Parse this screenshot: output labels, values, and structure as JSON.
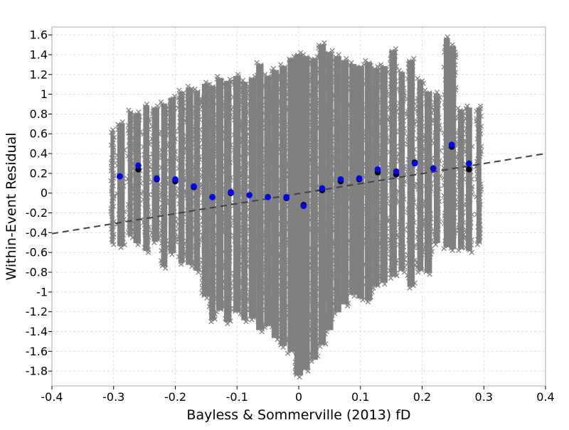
{
  "chart_data": {
    "type": "scatter",
    "title": "",
    "xlabel": "Bayless & Sommerville (2013) fD",
    "ylabel": "Within-Event Residual",
    "xlim": [
      -0.4,
      0.4
    ],
    "ylim": [
      -1.95,
      1.68
    ],
    "xticks": [
      -0.4,
      -0.3,
      -0.2,
      -0.1,
      0,
      0.1,
      0.2,
      0.3,
      0.4
    ],
    "xtick_labels": [
      "-0.4",
      "-0.3",
      "-0.2",
      "-0.1",
      "0",
      "0.1",
      "0.2",
      "0.3",
      "0.4"
    ],
    "yticks": [
      1.6,
      1.4,
      1.2,
      1,
      0.8,
      0.6,
      0.4,
      0.2,
      0,
      -0.2,
      -0.4,
      -0.6,
      -0.8,
      -1,
      -1.2,
      -1.4,
      -1.6,
      -1.8
    ],
    "ytick_labels": [
      "1.6",
      "1.4",
      "1.2",
      "1",
      "0.8",
      "0.6",
      "0.4",
      "0.2",
      "0",
      "-0.2",
      "-0.4",
      "-0.6",
      "-0.8",
      "-1",
      "-1.2",
      "-1.4",
      "-1.6",
      "-1.8"
    ],
    "grid": true,
    "legend": "none",
    "colors": {
      "residuals": "#808080",
      "bin_mean_black": "#000000",
      "bin_mean_blue": "#0000ff",
      "trend_line": "#404040",
      "grid": "#dddddd",
      "frame": "#aaaaaa"
    },
    "series": [
      {
        "marker": "x",
        "color": "#808080",
        "columns": [
          {
            "x": -0.302,
            "ymin": -0.52,
            "ymax": 0.64,
            "w": 0.006
          },
          {
            "x": -0.288,
            "ymin": -0.55,
            "ymax": 0.72,
            "w": 0.012
          },
          {
            "x": -0.273,
            "ymin": -0.45,
            "ymax": 0.84,
            "w": 0.008
          },
          {
            "x": -0.262,
            "ymin": -0.52,
            "ymax": 0.82,
            "w": 0.012
          },
          {
            "x": -0.247,
            "ymin": -0.6,
            "ymax": 0.9,
            "w": 0.01
          },
          {
            "x": -0.232,
            "ymin": -0.5,
            "ymax": 0.88,
            "w": 0.012
          },
          {
            "x": -0.218,
            "ymin": -0.76,
            "ymax": 0.92,
            "w": 0.01
          },
          {
            "x": -0.205,
            "ymin": -0.62,
            "ymax": 0.98,
            "w": 0.012
          },
          {
            "x": -0.19,
            "ymin": -0.72,
            "ymax": 1.04,
            "w": 0.01
          },
          {
            "x": -0.177,
            "ymin": -0.74,
            "ymax": 1.08,
            "w": 0.012
          },
          {
            "x": -0.165,
            "ymin": -0.8,
            "ymax": 1.05,
            "w": 0.01
          },
          {
            "x": -0.151,
            "ymin": -1.06,
            "ymax": 1.12,
            "w": 0.012
          },
          {
            "x": -0.14,
            "ymin": -1.3,
            "ymax": 1.1,
            "w": 0.01
          },
          {
            "x": -0.128,
            "ymin": -1.2,
            "ymax": 1.18,
            "w": 0.012
          },
          {
            "x": -0.115,
            "ymin": -1.32,
            "ymax": 1.15,
            "w": 0.012
          },
          {
            "x": -0.1,
            "ymin": -1.22,
            "ymax": 1.2,
            "w": 0.012
          },
          {
            "x": -0.088,
            "ymin": -1.3,
            "ymax": 1.14,
            "w": 0.01
          },
          {
            "x": -0.075,
            "ymin": -1.28,
            "ymax": 1.18,
            "w": 0.012
          },
          {
            "x": -0.063,
            "ymin": -1.4,
            "ymax": 1.32,
            "w": 0.012
          },
          {
            "x": -0.05,
            "ymin": -1.36,
            "ymax": 1.2,
            "w": 0.012
          },
          {
            "x": -0.038,
            "ymin": -1.48,
            "ymax": 1.26,
            "w": 0.012
          },
          {
            "x": -0.025,
            "ymin": -1.56,
            "ymax": 1.3,
            "w": 0.012
          },
          {
            "x": -0.012,
            "ymin": -1.62,
            "ymax": 1.38,
            "w": 0.012
          },
          {
            "x": 0.0,
            "ymin": -1.86,
            "ymax": 1.42,
            "w": 0.014
          },
          {
            "x": 0.012,
            "ymin": -1.8,
            "ymax": 1.4,
            "w": 0.012
          },
          {
            "x": 0.025,
            "ymin": -1.7,
            "ymax": 1.38,
            "w": 0.012
          },
          {
            "x": 0.038,
            "ymin": -1.55,
            "ymax": 1.52,
            "w": 0.012
          },
          {
            "x": 0.05,
            "ymin": -1.4,
            "ymax": 1.44,
            "w": 0.012
          },
          {
            "x": 0.063,
            "ymin": -1.22,
            "ymax": 1.4,
            "w": 0.012
          },
          {
            "x": 0.075,
            "ymin": -1.14,
            "ymax": 1.36,
            "w": 0.012
          },
          {
            "x": 0.088,
            "ymin": -1.04,
            "ymax": 1.32,
            "w": 0.012
          },
          {
            "x": 0.1,
            "ymin": -1.08,
            "ymax": 1.3,
            "w": 0.012
          },
          {
            "x": 0.113,
            "ymin": -1.1,
            "ymax": 1.34,
            "w": 0.012
          },
          {
            "x": 0.125,
            "ymin": -0.96,
            "ymax": 1.28,
            "w": 0.012
          },
          {
            "x": 0.138,
            "ymin": -0.92,
            "ymax": 1.3,
            "w": 0.012
          },
          {
            "x": 0.153,
            "ymin": -0.86,
            "ymax": 1.46,
            "w": 0.012
          },
          {
            "x": 0.167,
            "ymin": -0.8,
            "ymax": 1.24,
            "w": 0.01
          },
          {
            "x": 0.182,
            "ymin": -0.96,
            "ymax": 1.36,
            "w": 0.012
          },
          {
            "x": 0.197,
            "ymin": -0.8,
            "ymax": 1.16,
            "w": 0.01
          },
          {
            "x": 0.21,
            "ymin": -0.82,
            "ymax": 1.04,
            "w": 0.012
          },
          {
            "x": 0.224,
            "ymin": -0.52,
            "ymax": 1.02,
            "w": 0.01
          },
          {
            "x": 0.24,
            "ymin": -0.56,
            "ymax": 1.58,
            "w": 0.01
          },
          {
            "x": 0.25,
            "ymin": -0.58,
            "ymax": 1.5,
            "w": 0.01
          },
          {
            "x": 0.263,
            "ymin": -0.58,
            "ymax": 0.86,
            "w": 0.01
          },
          {
            "x": 0.276,
            "ymin": -0.6,
            "ymax": 0.88,
            "w": 0.01
          },
          {
            "x": 0.292,
            "ymin": -0.52,
            "ymax": 0.88,
            "w": 0.008
          }
        ]
      },
      {
        "marker": "circle",
        "color": "#000000",
        "points": [
          {
            "x": -0.29,
            "y": 0.17
          },
          {
            "x": -0.26,
            "y": 0.24
          },
          {
            "x": -0.23,
            "y": 0.14
          },
          {
            "x": -0.2,
            "y": 0.12
          },
          {
            "x": -0.17,
            "y": 0.06
          },
          {
            "x": -0.14,
            "y": -0.04
          },
          {
            "x": -0.11,
            "y": 0.0
          },
          {
            "x": -0.08,
            "y": -0.02
          },
          {
            "x": -0.05,
            "y": -0.04
          },
          {
            "x": -0.02,
            "y": -0.05
          },
          {
            "x": 0.008,
            "y": -0.12
          },
          {
            "x": 0.038,
            "y": 0.03
          },
          {
            "x": 0.068,
            "y": 0.12
          },
          {
            "x": 0.098,
            "y": 0.14
          },
          {
            "x": 0.128,
            "y": 0.21
          },
          {
            "x": 0.158,
            "y": 0.19
          },
          {
            "x": 0.188,
            "y": 0.31
          },
          {
            "x": 0.218,
            "y": 0.25
          },
          {
            "x": 0.248,
            "y": 0.47
          },
          {
            "x": 0.276,
            "y": 0.24
          }
        ]
      },
      {
        "marker": "circle",
        "color": "#0000ff",
        "points": [
          {
            "x": -0.29,
            "y": 0.17
          },
          {
            "x": -0.26,
            "y": 0.28
          },
          {
            "x": -0.23,
            "y": 0.15
          },
          {
            "x": -0.2,
            "y": 0.14
          },
          {
            "x": -0.17,
            "y": 0.07
          },
          {
            "x": -0.14,
            "y": -0.04
          },
          {
            "x": -0.11,
            "y": 0.01
          },
          {
            "x": -0.08,
            "y": -0.02
          },
          {
            "x": -0.05,
            "y": -0.04
          },
          {
            "x": -0.02,
            "y": -0.04
          },
          {
            "x": 0.008,
            "y": -0.13
          },
          {
            "x": 0.038,
            "y": 0.05
          },
          {
            "x": 0.068,
            "y": 0.14
          },
          {
            "x": 0.098,
            "y": 0.15
          },
          {
            "x": 0.128,
            "y": 0.24
          },
          {
            "x": 0.158,
            "y": 0.22
          },
          {
            "x": 0.188,
            "y": 0.3
          },
          {
            "x": 0.218,
            "y": 0.25
          },
          {
            "x": 0.248,
            "y": 0.49
          },
          {
            "x": 0.276,
            "y": 0.3
          }
        ]
      }
    ],
    "trend_line": {
      "x": [
        -0.4,
        0.4
      ],
      "y": [
        -0.41,
        0.4
      ],
      "style": "dashed",
      "color": "#404040"
    }
  }
}
